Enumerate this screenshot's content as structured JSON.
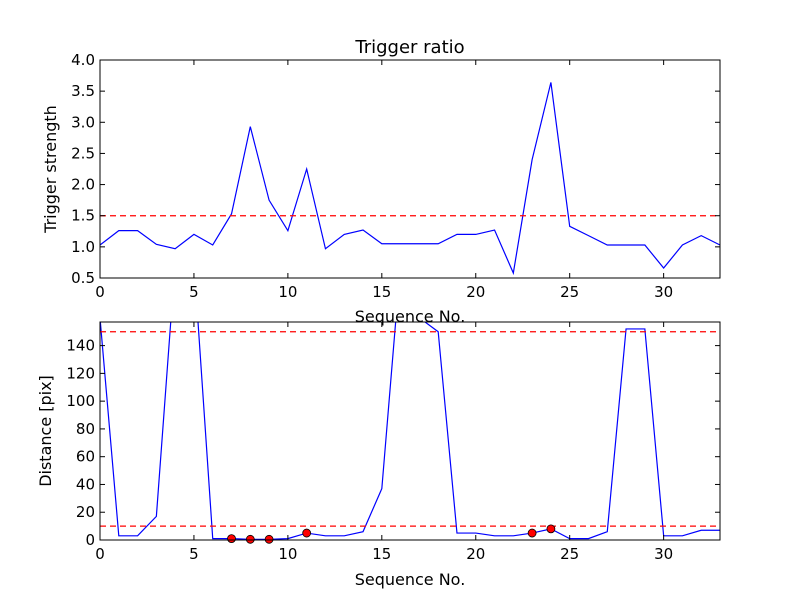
{
  "chart_data": [
    {
      "type": "line",
      "title": "Trigger ratio",
      "xlabel": "Sequence No.",
      "ylabel": "Trigger strength",
      "xlim": [
        0,
        33
      ],
      "ylim": [
        0.5,
        4.0
      ],
      "xticks": [
        "0",
        "5",
        "10",
        "15",
        "20",
        "25",
        "30"
      ],
      "yticks": [
        "0.5",
        "1.0",
        "1.5",
        "2.0",
        "2.5",
        "3.0",
        "3.5",
        "4.0"
      ],
      "grid": false,
      "series": [
        {
          "color": "#0000ff",
          "x": [
            0,
            1,
            2,
            3,
            4,
            5,
            6,
            7,
            8,
            9,
            10,
            11,
            12,
            13,
            14,
            15,
            16,
            17,
            18,
            19,
            20,
            21,
            22,
            23,
            24,
            25,
            26,
            27,
            28,
            29,
            30,
            31,
            32,
            33
          ],
          "values": [
            1.03,
            1.26,
            1.26,
            1.04,
            0.97,
            1.2,
            1.03,
            1.53,
            2.93,
            1.75,
            1.26,
            2.25,
            0.97,
            1.2,
            1.27,
            1.05,
            1.05,
            1.05,
            1.05,
            1.2,
            1.2,
            1.27,
            0.58,
            2.4,
            3.64,
            1.33,
            1.18,
            1.03,
            1.03,
            1.03,
            0.66,
            1.03,
            1.18,
            1.03
          ]
        }
      ],
      "threshold": {
        "value": 1.5,
        "color": "#ff0000",
        "style": "dashed"
      }
    },
    {
      "type": "line",
      "title": "",
      "xlabel": "Sequence No.",
      "ylabel": "Distance [pix]",
      "xlim": [
        0,
        33
      ],
      "ylim": [
        0,
        157
      ],
      "xticks": [
        "0",
        "5",
        "10",
        "15",
        "20",
        "25",
        "30"
      ],
      "yticks": [
        "0",
        "20",
        "40",
        "60",
        "80",
        "100",
        "120",
        "140"
      ],
      "grid": false,
      "series": [
        {
          "color": "#0000ff",
          "x": [
            0,
            1,
            2,
            3,
            4,
            5,
            6,
            7,
            8,
            9,
            10,
            11,
            12,
            13,
            14,
            15,
            16,
            17,
            18,
            19,
            20,
            21,
            22,
            23,
            24,
            25,
            26,
            27,
            28,
            29,
            30,
            31,
            32,
            33
          ],
          "values": [
            160,
            3,
            3,
            17,
            200,
            200,
            1,
            1,
            0.5,
            0.5,
            1,
            5,
            3,
            3,
            6,
            37,
            200,
            160,
            150,
            5,
            5,
            3,
            3,
            5,
            8,
            1,
            1,
            6,
            152,
            152,
            3,
            3,
            7,
            7
          ]
        }
      ],
      "markers": {
        "color": "#ff0000",
        "x": [
          7,
          8,
          9,
          11,
          23,
          24
        ],
        "y": [
          1,
          0.5,
          0.5,
          5,
          5,
          8
        ]
      },
      "thresholds": [
        {
          "value": 10,
          "color": "#ff0000",
          "style": "dashed"
        },
        {
          "value": 150,
          "color": "#ff0000",
          "style": "dashed"
        }
      ]
    }
  ]
}
